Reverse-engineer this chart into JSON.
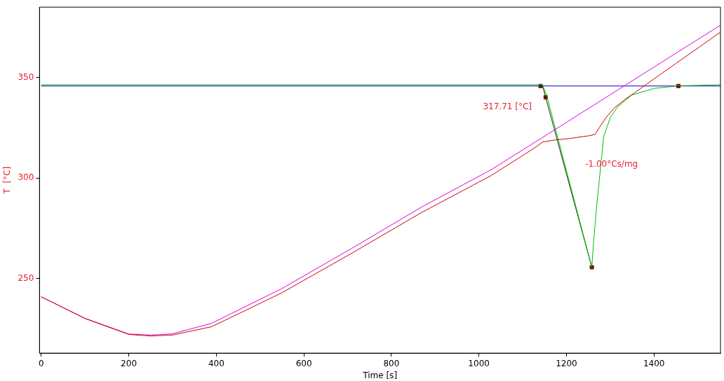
{
  "chart_data": {
    "type": "line",
    "xlabel": "Time [s]",
    "ylabel": "T  [°C]",
    "xlim": [
      -4,
      1552
    ],
    "xticks": [
      0,
      200,
      400,
      600,
      800,
      1000,
      1200,
      1400
    ],
    "ylim": [
      213,
      385
    ],
    "yticks": [
      250,
      300,
      350
    ],
    "grid": false,
    "legend": false,
    "marker": "none",
    "line_style": "solid",
    "annotations": [
      "317.71 [°C]",
      "-1.00°Cs/mg"
    ],
    "series": [
      {
        "color": "#cc0000",
        "x": [
          0,
          100,
          200,
          250,
          300,
          389,
          549,
          709,
          869,
          1029,
          1125,
          1146,
          1178,
          1200,
          1250,
          1265,
          1275,
          1290,
          1310,
          1333,
          1360,
          1400,
          1450,
          1500,
          1552
        ],
        "values": [
          241,
          230.2,
          222.3,
          221.5,
          222,
          226.1,
          242.9,
          262.6,
          282.9,
          301.4,
          314.7,
          318,
          319.1,
          319.5,
          321,
          321.7,
          325,
          330,
          335,
          339,
          343.1,
          349.3,
          357,
          364.6,
          372.6
        ]
      },
      {
        "color": "#dd00dd",
        "x": [
          0,
          100,
          200,
          250,
          300,
          389,
          549,
          709,
          869,
          1029,
          1173,
          1317,
          1400,
          1480,
          1552
        ],
        "values": [
          241,
          230.3,
          222.5,
          222,
          222.6,
          227.8,
          245,
          265,
          285.6,
          304.3,
          324,
          343.8,
          355.2,
          366.2,
          376
        ]
      },
      {
        "color": "#00bb00",
        "x": [
          0,
          1145,
          1155,
          1258,
          1262,
          1269,
          1285,
          1300,
          1317,
          1349,
          1401,
          1456,
          1552
        ],
        "values": [
          346.4,
          346.4,
          341,
          255.7,
          268,
          285.8,
          320.5,
          330,
          335.5,
          341.3,
          344.6,
          345.9,
          346.4
        ]
      },
      {
        "color": "#0000cc",
        "x": [
          0,
          1552
        ],
        "values": [
          345.8,
          345.8
        ]
      },
      {
        "color": "#003300",
        "x": [
          1145,
          1258
        ],
        "values": [
          346.2,
          255.7
        ]
      },
      {
        "type": "scatter",
        "marker": "square",
        "color": "#800000",
        "x": [
          1141,
          1152.5,
          1258,
          1456
        ],
        "values": [
          345.8,
          340.2,
          255.7,
          345.8
        ]
      }
    ]
  }
}
